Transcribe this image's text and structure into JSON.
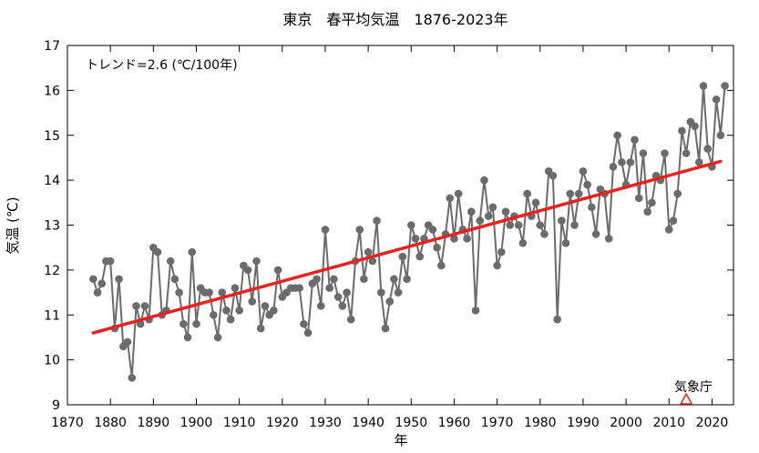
{
  "chart_data": {
    "type": "scatter",
    "title": "東京　春平均気温　1876-2023年",
    "xlabel": "年",
    "ylabel": "気温 (℃)",
    "xlim": [
      1870,
      2025
    ],
    "ylim": [
      9,
      17
    ],
    "x_ticks": [
      1870,
      1880,
      1890,
      1900,
      1910,
      1920,
      1930,
      1940,
      1950,
      1960,
      1970,
      1980,
      1990,
      2000,
      2010,
      2020
    ],
    "y_ticks": [
      9,
      10,
      11,
      12,
      13,
      14,
      15,
      16,
      17
    ],
    "grid": false,
    "trend_label": "トレンド=2.6 (℃/100年)",
    "source_label": "気象庁",
    "source_marker_year": 2014,
    "colors": {
      "series": "#6b6b6b",
      "trend": "#e8231f",
      "marker": "#e8231f"
    },
    "trend": {
      "x": [
        1876,
        2022
      ],
      "y": [
        10.6,
        14.42
      ]
    },
    "series": [
      {
        "x": [
          1876,
          1877,
          1878,
          1879,
          1880,
          1881,
          1882,
          1883,
          1884,
          1885,
          1886,
          1887,
          1888,
          1889,
          1890,
          1891,
          1892,
          1893,
          1894,
          1895,
          1896,
          1897,
          1898,
          1899,
          1900,
          1901,
          1902,
          1903,
          1904,
          1905,
          1906,
          1907,
          1908,
          1909,
          1910,
          1911,
          1912,
          1913,
          1914,
          1915,
          1916,
          1917,
          1918,
          1919,
          1920,
          1921,
          1922,
          1923,
          1924,
          1925,
          1926,
          1927,
          1928,
          1929,
          1930,
          1931,
          1932,
          1933,
          1934,
          1935,
          1936,
          1937,
          1938,
          1939,
          1940,
          1941,
          1942,
          1943,
          1944,
          1945,
          1946,
          1947,
          1948,
          1949,
          1950,
          1951,
          1952,
          1953,
          1954,
          1955,
          1956,
          1957,
          1958,
          1959,
          1960,
          1961,
          1962,
          1963,
          1964,
          1965,
          1966,
          1967,
          1968,
          1969,
          1970,
          1971,
          1972,
          1973,
          1974,
          1975,
          1976,
          1977,
          1978,
          1979,
          1980,
          1981,
          1982,
          1983,
          1984,
          1985,
          1986,
          1987,
          1988,
          1989,
          1990,
          1991,
          1992,
          1993,
          1994,
          1995,
          1996,
          1997,
          1998,
          1999,
          2000,
          2001,
          2002,
          2003,
          2004,
          2005,
          2006,
          2007,
          2008,
          2009,
          2010,
          2011,
          2012,
          2013,
          2014,
          2015,
          2016,
          2017,
          2018,
          2019,
          2020,
          2021,
          2022,
          2023
        ],
        "values": [
          11.8,
          11.5,
          11.7,
          12.2,
          12.2,
          10.7,
          11.8,
          10.3,
          10.4,
          9.6,
          11.2,
          10.8,
          11.2,
          10.9,
          12.5,
          12.4,
          11.0,
          11.1,
          12.2,
          11.8,
          11.5,
          10.8,
          10.5,
          12.4,
          10.8,
          11.6,
          11.5,
          11.5,
          11.0,
          10.5,
          11.5,
          11.1,
          10.9,
          11.6,
          11.1,
          12.1,
          12.0,
          11.3,
          12.2,
          10.7,
          11.2,
          11.0,
          11.1,
          12.0,
          11.4,
          11.5,
          11.6,
          11.6,
          11.6,
          10.8,
          10.6,
          11.7,
          11.8,
          11.2,
          12.9,
          11.6,
          11.8,
          11.4,
          11.2,
          11.5,
          10.9,
          12.2,
          12.9,
          11.8,
          12.4,
          12.2,
          13.1,
          11.5,
          10.7,
          11.3,
          11.8,
          11.5,
          12.3,
          11.8,
          13.0,
          12.7,
          12.3,
          12.7,
          13.0,
          12.9,
          12.5,
          12.1,
          12.8,
          13.6,
          12.7,
          13.7,
          12.9,
          12.7,
          13.3,
          11.1,
          13.1,
          14.0,
          13.2,
          13.4,
          12.1,
          12.4,
          13.3,
          13.0,
          13.2,
          13.0,
          12.6,
          13.7,
          13.2,
          13.5,
          13.0,
          12.8,
          14.2,
          14.1,
          10.9,
          13.1,
          12.6,
          13.7,
          13.0,
          13.7,
          14.2,
          13.9,
          13.4,
          12.8,
          13.8,
          13.7,
          12.7,
          14.3,
          15.0,
          14.4,
          13.9,
          14.4,
          14.9,
          13.6,
          14.6,
          13.3,
          13.5,
          14.1,
          14.0,
          14.6,
          12.9,
          13.1,
          13.7,
          15.1,
          14.6,
          15.3,
          15.2,
          14.4,
          16.1,
          14.7,
          14.3,
          15.8,
          15.0,
          16.1
        ]
      }
    ]
  }
}
